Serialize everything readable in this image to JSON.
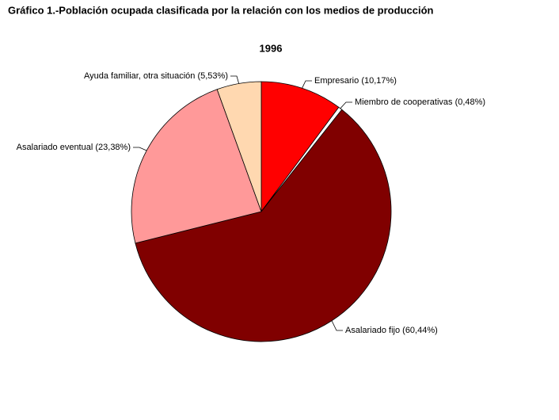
{
  "chart_data": {
    "type": "pie",
    "title": "Gráfico 1.-Población ocupada clasificada por la relación con los medios de producción",
    "subtitle": "1996",
    "categories": [
      "Empresario",
      "Miembro de cooperativas",
      "Asalariado fijo",
      "Asalariado eventual",
      "Ayuda familiar, otra situación"
    ],
    "values": [
      10.17,
      0.48,
      60.44,
      23.38,
      5.53
    ],
    "value_labels": [
      "(10,17%)",
      "(0,48%)",
      "(60,44%)",
      "(23,38%)",
      "(5,53%)"
    ],
    "colors": [
      "#ff0000",
      "#ffffff",
      "#800000",
      "#ff9999",
      "#ffd8b0"
    ]
  }
}
